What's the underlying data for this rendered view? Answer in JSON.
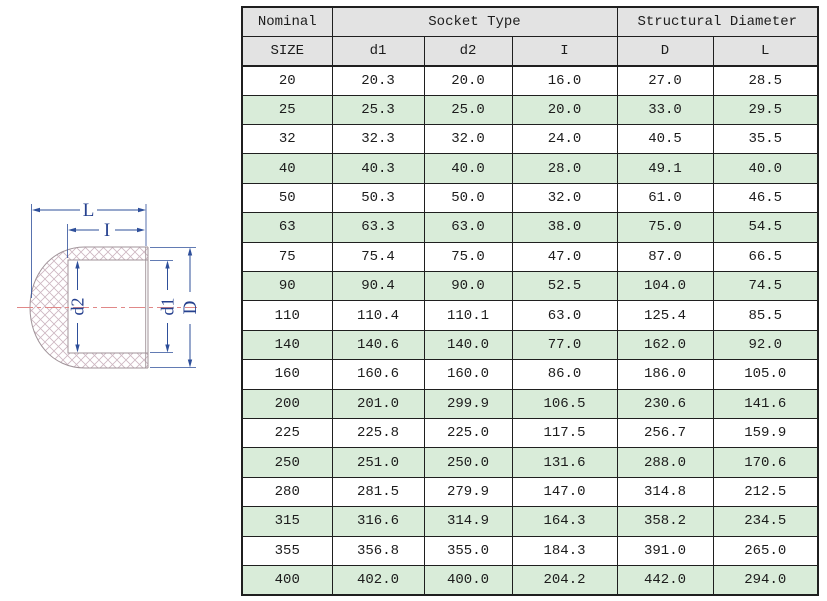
{
  "diagram": {
    "description": "cross-section of pipe end cap with crosshatched wall",
    "labels": {
      "L": "L",
      "I": "I",
      "d2": "d2",
      "d1": "d1",
      "D": "D"
    },
    "colors": {
      "dimension_blue": "#2e4f9a",
      "label_blue": "#26418f",
      "centerline_red": "#e08888",
      "hatch_pink": "#cdb6c1",
      "outline_gray": "#a09399"
    }
  },
  "table": {
    "header_groups": [
      {
        "label": "Nominal"
      },
      {
        "label": "Socket Type"
      },
      {
        "label": "Structural Diameter"
      }
    ],
    "columns": [
      "SIZE",
      "d1",
      "d2",
      "I",
      "D",
      "L"
    ],
    "rows": [
      [
        "20",
        "20.3",
        "20.0",
        "16.0",
        "27.0",
        "28.5"
      ],
      [
        "25",
        "25.3",
        "25.0",
        "20.0",
        "33.0",
        "29.5"
      ],
      [
        "32",
        "32.3",
        "32.0",
        "24.0",
        "40.5",
        "35.5"
      ],
      [
        "40",
        "40.3",
        "40.0",
        "28.0",
        "49.1",
        "40.0"
      ],
      [
        "50",
        "50.3",
        "50.0",
        "32.0",
        "61.0",
        "46.5"
      ],
      [
        "63",
        "63.3",
        "63.0",
        "38.0",
        "75.0",
        "54.5"
      ],
      [
        "75",
        "75.4",
        "75.0",
        "47.0",
        "87.0",
        "66.5"
      ],
      [
        "90",
        "90.4",
        "90.0",
        "52.5",
        "104.0",
        "74.5"
      ],
      [
        "110",
        "110.4",
        "110.1",
        "63.0",
        "125.4",
        "85.5"
      ],
      [
        "140",
        "140.6",
        "140.0",
        "77.0",
        "162.0",
        "92.0"
      ],
      [
        "160",
        "160.6",
        "160.0",
        "86.0",
        "186.0",
        "105.0"
      ],
      [
        "200",
        "201.0",
        "299.9",
        "106.5",
        "230.6",
        "141.6"
      ],
      [
        "225",
        "225.8",
        "225.0",
        "117.5",
        "256.7",
        "159.9"
      ],
      [
        "250",
        "251.0",
        "250.0",
        "131.6",
        "288.0",
        "170.6"
      ],
      [
        "280",
        "281.5",
        "279.9",
        "147.0",
        "314.8",
        "212.5"
      ],
      [
        "315",
        "316.6",
        "314.9",
        "164.3",
        "358.2",
        "234.5"
      ],
      [
        "355",
        "356.8",
        "355.0",
        "184.3",
        "391.0",
        "265.0"
      ],
      [
        "400",
        "402.0",
        "400.0",
        "204.2",
        "442.0",
        "294.0"
      ]
    ],
    "colors": {
      "header_bg": "#e3e3e3",
      "row_bg": "#ffffff",
      "row_alt_bg": "#d9ecd9",
      "border": "#1f1f1f"
    }
  }
}
